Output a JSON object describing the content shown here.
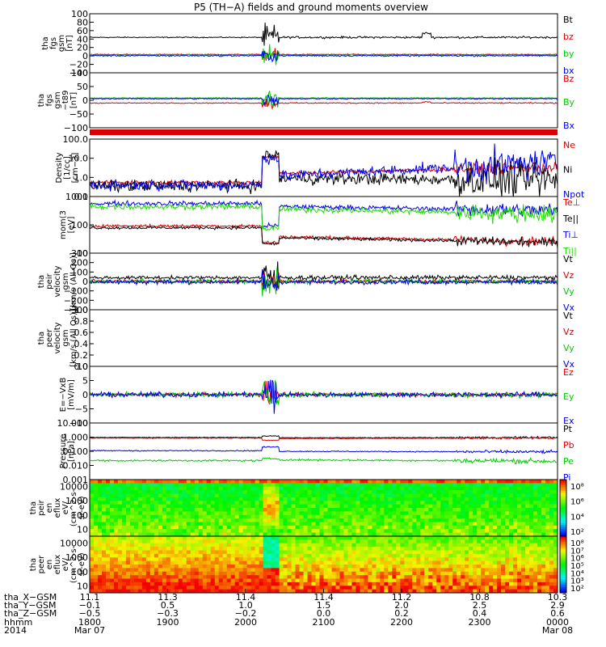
{
  "title": "P5 (TH−A) fields and ground moments overview",
  "colors": {
    "black": "#000000",
    "red": "#dd0000",
    "green": "#00cc00",
    "blue": "#0000ee",
    "lime": "#22dd00"
  },
  "chart_data": [
    {
      "type": "line",
      "ylabel": [
        "tha",
        "fgs",
        "gsm",
        "[nT]"
      ],
      "yticks": [
        "100",
        "80",
        "60",
        "40",
        "20",
        "0",
        "−20",
        "−40"
      ],
      "ylim": [
        -45,
        100
      ],
      "legend": [
        {
          "label": "Bt",
          "color": "black"
        },
        {
          "label": "bz",
          "color": "red"
        },
        {
          "label": "by",
          "color": "green"
        },
        {
          "label": "bx",
          "color": "blue"
        }
      ],
      "series": [
        {
          "name": "Bt",
          "color": "black",
          "base": 42,
          "pre": 1,
          "burst": 25,
          "post": 2,
          "bump": 10
        },
        {
          "name": "bz",
          "color": "red",
          "base": 0,
          "pre": 1,
          "burst": 10,
          "post": 1,
          "bump": 0
        },
        {
          "name": "by",
          "color": "green",
          "base": -1,
          "pre": 1.5,
          "burst": 18,
          "post": 1.5,
          "bump": 0
        },
        {
          "name": "bx",
          "color": "blue",
          "base": -3,
          "pre": 1.5,
          "burst": 12,
          "post": 1.5,
          "bump": 0
        }
      ]
    },
    {
      "type": "line",
      "ylabel": [
        "tha",
        "fgs",
        "gsm",
        "−t89",
        "[nT]"
      ],
      "yticks": [
        "100",
        "50",
        "0",
        "−50",
        "−100"
      ],
      "ylim": [
        -130,
        110
      ],
      "legend": [
        {
          "label": "Bz",
          "color": "red"
        },
        {
          "label": "By",
          "color": "green"
        },
        {
          "label": "Bx",
          "color": "blue"
        }
      ],
      "series": [
        {
          "name": "Bz",
          "color": "red",
          "base": -22,
          "pre": 1.5,
          "burst": 20,
          "post": 2,
          "bump": 5
        },
        {
          "name": "By",
          "color": "green",
          "base": 0,
          "pre": 1.5,
          "burst": 35,
          "post": 1.5,
          "bump": 0
        },
        {
          "name": "Bx",
          "color": "blue",
          "base": -3,
          "pre": 2,
          "burst": 25,
          "post": 2,
          "bump": 0
        }
      ]
    },
    {
      "type": "line",
      "log": true,
      "ylabel": [
        "Density",
        "[1/cc]",
        "[cm−3]"
      ],
      "yticks": [
        "100.0",
        "10.0",
        "1.0",
        "0.1"
      ],
      "ylim": [
        0.1,
        100
      ],
      "legend": [
        {
          "label": "Ne",
          "color": "red"
        },
        {
          "label": "Ni",
          "color": "black"
        },
        {
          "label": "Npot",
          "color": "blue"
        }
      ],
      "series": [
        {
          "name": "Ne",
          "color": "red",
          "pre": 0.55,
          "sheath": 12,
          "post": 1.6,
          "end": 3.5,
          "noise": 0.08
        },
        {
          "name": "Ni",
          "color": "black",
          "pre": 0.35,
          "sheath": 14,
          "post": 0.9,
          "end": 0.7,
          "noise": 0.25
        },
        {
          "name": "Npot",
          "color": "blue",
          "pre": 0.4,
          "sheath": 10,
          "post": 1.2,
          "end": 6,
          "noise": 0.22
        }
      ]
    },
    {
      "type": "line",
      "log": true,
      "ylabel": [
        "mom(3",
        "[eV]"
      ],
      "yticks": [
        "1000",
        "100",
        "10"
      ],
      "ylim": [
        10,
        8000
      ],
      "legend": [
        {
          "label": "Te⊥",
          "color": "red"
        },
        {
          "label": "Te||",
          "color": "black"
        },
        {
          "label": "Ti⊥",
          "color": "blue"
        },
        {
          "label": "Ti||",
          "color": "lime"
        }
      ],
      "series": [
        {
          "name": "Te⊥",
          "color": "red",
          "pre": 250,
          "sheath": 35,
          "post": 70,
          "end": 40,
          "noise": 0.06
        },
        {
          "name": "Te||",
          "color": "black",
          "pre": 200,
          "sheath": 30,
          "post": 60,
          "end": 35,
          "noise": 0.06
        },
        {
          "name": "Ti⊥",
          "color": "blue",
          "pre": 3500,
          "sheath": 250,
          "post": 2500,
          "end": 1500,
          "noise": 0.1
        },
        {
          "name": "Ti||",
          "color": "lime",
          "pre": 2400,
          "sheath": 180,
          "post": 1800,
          "end": 1000,
          "noise": 0.12
        }
      ]
    },
    {
      "type": "line",
      "ylabel": [
        "tha",
        "peir",
        "velocity",
        "gsm",
        "[km/s (All Qs)]"
      ],
      "yticks": [
        "300",
        "200",
        "100",
        "0",
        "−100",
        "−200",
        "−300"
      ],
      "ylim": [
        -300,
        300
      ],
      "legend": [
        {
          "label": "Vt",
          "color": "black"
        },
        {
          "label": "Vz",
          "color": "red"
        },
        {
          "label": "Vy",
          "color": "green"
        },
        {
          "label": "Vx",
          "color": "blue"
        }
      ],
      "series": [
        {
          "name": "Vt",
          "color": "black",
          "base": 40,
          "pre": 15,
          "burst": 150,
          "post": 20,
          "bump": 0
        },
        {
          "name": "Vz",
          "color": "red",
          "base": 0,
          "pre": 15,
          "burst": 80,
          "post": 15,
          "bump": 0
        },
        {
          "name": "Vy",
          "color": "green",
          "base": 0,
          "pre": 20,
          "burst": 120,
          "post": 20,
          "bump": 0
        },
        {
          "name": "Vx",
          "color": "blue",
          "base": -5,
          "pre": 20,
          "burst": 140,
          "post": 20,
          "bump": 0
        }
      ]
    },
    {
      "type": "line",
      "ylabel": [
        "tha",
        "peer",
        "velocity",
        "gsm",
        "[km/s (All Qs)]"
      ],
      "yticks": [
        "1.0",
        "0.8",
        "0.6",
        "0.4",
        "0.2",
        "0.0"
      ],
      "ylim": [
        0,
        1
      ],
      "legend": [
        {
          "label": "Vt",
          "color": "black"
        },
        {
          "label": "Vz",
          "color": "red"
        },
        {
          "label": "Vy",
          "color": "green"
        },
        {
          "label": "Vx",
          "color": "blue"
        }
      ],
      "series": []
    },
    {
      "type": "line",
      "ylabel": [
        "E=−VxB",
        "[mV/m]"
      ],
      "yticks": [
        "10",
        "5",
        "0",
        "−5",
        "−10"
      ],
      "ylim": [
        -11,
        11
      ],
      "legend": [
        {
          "label": "Ez",
          "color": "red"
        },
        {
          "label": "Ey",
          "color": "green"
        },
        {
          "label": "Ex",
          "color": "blue"
        }
      ],
      "series": [
        {
          "name": "Ez",
          "color": "red",
          "base": 0,
          "pre": 0.6,
          "burst": 4,
          "post": 0.6,
          "bump": 0
        },
        {
          "name": "Ey",
          "color": "green",
          "base": 0,
          "pre": 0.8,
          "burst": 5,
          "post": 0.8,
          "bump": 0
        },
        {
          "name": "Ex",
          "color": "blue",
          "base": 0,
          "pre": 0.8,
          "burst": 7,
          "post": 0.8,
          "bump": 0
        }
      ]
    },
    {
      "type": "line",
      "log": true,
      "ylabel": [
        "Pressure",
        "[nPa]"
      ],
      "yticks": [
        "10.000",
        "1.000",
        "0.100",
        "0.010",
        "0.001"
      ],
      "ylim": [
        0.001,
        10
      ],
      "legend": [
        {
          "label": "Pt",
          "color": "black"
        },
        {
          "label": "Pb",
          "color": "red"
        },
        {
          "label": "Pe",
          "color": "green"
        },
        {
          "label": "Pi",
          "color": "blue"
        }
      ],
      "series": [
        {
          "name": "Pt",
          "color": "black",
          "pre": 0.95,
          "sheath": 1.2,
          "post": 0.9,
          "end": 0.95,
          "noise": 0.02
        },
        {
          "name": "Pb",
          "color": "red",
          "pre": 0.85,
          "sheath": 0.6,
          "post": 0.8,
          "end": 0.85,
          "noise": 0.02
        },
        {
          "name": "Pe",
          "color": "green",
          "pre": 0.022,
          "sheath": 0.03,
          "post": 0.025,
          "end": 0.02,
          "noise": 0.05
        },
        {
          "name": "Pi",
          "color": "blue",
          "pre": 0.11,
          "sheath": 0.2,
          "post": 0.1,
          "end": 0.09,
          "noise": 0.03
        }
      ]
    },
    {
      "type": "heatmap",
      "ylabel": [
        "tha",
        "peir",
        "en",
        "eflux",
        "eV/",
        "(cm^2-s-",
        "sr-eV)"
      ],
      "yticks": [
        "10000",
        "1000",
        "100",
        "10"
      ]
    },
    {
      "type": "heatmap",
      "ylabel": [
        "tha",
        "peer",
        "en",
        "eflux",
        "eV/",
        "(cm^2-s-",
        "sr-eV)"
      ],
      "yticks": [
        "10000",
        "1000",
        "100",
        "10"
      ]
    }
  ],
  "spectrogram_colorbar": {
    "upper_ticks": [
      "10⁸",
      "10⁶",
      "10⁴",
      "10²"
    ],
    "lower_ticks": [
      "10⁸",
      "10⁷",
      "10⁶",
      "10⁵",
      "10⁴",
      "10³",
      "10²"
    ]
  },
  "xaxis": {
    "row_labels": [
      "tha_X−GSM",
      "tha_Y−GSM",
      "tha_Z−GSM",
      "hhmm",
      "2014"
    ],
    "columns": [
      {
        "x": "11.1",
        "y": "−0.1",
        "z": "−0.5",
        "hhmm": "1800",
        "date": "Mar 07"
      },
      {
        "x": "11.3",
        "y": "0.5",
        "z": "−0.3",
        "hhmm": "1900",
        "date": ""
      },
      {
        "x": "11.4",
        "y": "1.0",
        "z": "−0.2",
        "hhmm": "2000",
        "date": ""
      },
      {
        "x": "11.4",
        "y": "1.5",
        "z": "0.0",
        "hhmm": "2100",
        "date": ""
      },
      {
        "x": "11.2",
        "y": "2.0",
        "z": "0.2",
        "hhmm": "2200",
        "date": ""
      },
      {
        "x": "10.8",
        "y": "2.5",
        "z": "0.4",
        "hhmm": "2300",
        "date": ""
      },
      {
        "x": "10.3",
        "y": "2.9",
        "z": "0.6",
        "hhmm": "0000",
        "date": "Mar 08"
      }
    ]
  }
}
